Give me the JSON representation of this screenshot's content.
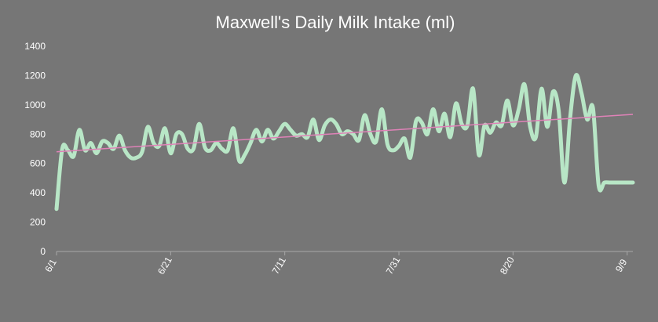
{
  "chart_data": {
    "type": "line",
    "title": "Maxwell's Daily Milk Intake (ml)",
    "xlabel": "",
    "ylabel": "",
    "ylim": [
      0,
      1400
    ],
    "y_ticks": [
      0,
      200,
      400,
      600,
      800,
      1000,
      1200,
      1400
    ],
    "x_ticks": [
      {
        "day": 0,
        "label": "6/1"
      },
      {
        "day": 20,
        "label": "6/21"
      },
      {
        "day": 40,
        "label": "7/11"
      },
      {
        "day": 60,
        "label": "7/31"
      },
      {
        "day": 80,
        "label": "8/20"
      },
      {
        "day": 100,
        "label": "9/9"
      }
    ],
    "grid": false,
    "series": [
      {
        "color": "#b8e6c6",
        "x": [
          0,
          1,
          2,
          3,
          4,
          5,
          6,
          7,
          8,
          9,
          10,
          11,
          12,
          13,
          14,
          15,
          16,
          17,
          18,
          19,
          20,
          21,
          22,
          23,
          24,
          25,
          26,
          27,
          28,
          29,
          30,
          31,
          32,
          33,
          34,
          35,
          36,
          37,
          38,
          39,
          40,
          41,
          42,
          43,
          44,
          45,
          46,
          47,
          48,
          49,
          50,
          51,
          52,
          53,
          54,
          55,
          56,
          57,
          58,
          59,
          60,
          61,
          62,
          63,
          64,
          65,
          66,
          67,
          68,
          69,
          70,
          71,
          72,
          73,
          74,
          75,
          76,
          77,
          78,
          79,
          80,
          81,
          82,
          83,
          84,
          85,
          86,
          87,
          88,
          89,
          90,
          91,
          92,
          93,
          94,
          95,
          96,
          97,
          98,
          99,
          100,
          101
        ],
        "values": [
          290,
          700,
          690,
          650,
          830,
          690,
          740,
          670,
          750,
          740,
          700,
          790,
          690,
          640,
          640,
          680,
          850,
          740,
          720,
          840,
          670,
          800,
          800,
          700,
          700,
          870,
          710,
          690,
          740,
          700,
          690,
          840,
          620,
          660,
          740,
          830,
          750,
          830,
          770,
          820,
          870,
          830,
          790,
          800,
          780,
          900,
          760,
          860,
          900,
          870,
          800,
          820,
          800,
          760,
          930,
          800,
          750,
          970,
          730,
          690,
          720,
          770,
          640,
          890,
          880,
          800,
          970,
          820,
          940,
          780,
          1010,
          870,
          860,
          1110,
          660,
          860,
          810,
          880,
          860,
          1030,
          860,
          970,
          1140,
          850,
          780,
          1110,
          850,
          1090,
          960,
          470,
          910,
          1200,
          1080,
          900,
          980,
          450,
          470,
          470,
          470,
          470,
          470,
          470
        ]
      },
      {
        "name": "",
        "color": "#e082b8",
        "trend_x": [
          0,
          101
        ],
        "trend_values": [
          680,
          935
        ]
      }
    ]
  }
}
